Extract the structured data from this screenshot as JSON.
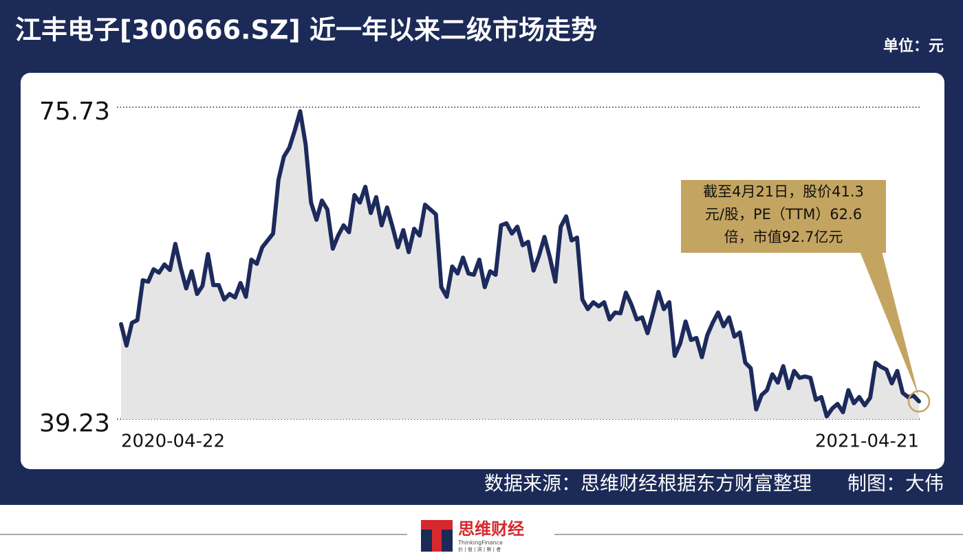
{
  "chart_data": {
    "type": "line",
    "title": "江丰电子[300666.SZ] 近一年以来二级市场走势",
    "unit": "单位：元",
    "categories": [
      "2020-04-22",
      null,
      null,
      null,
      null,
      null,
      null,
      null,
      null,
      null,
      null,
      null,
      null,
      null,
      null,
      null,
      null,
      null,
      null,
      null,
      null,
      null,
      null,
      null,
      null,
      null,
      null,
      null,
      null,
      null,
      null,
      null,
      null,
      null,
      null,
      null,
      null,
      null,
      null,
      null,
      null,
      null,
      null,
      null,
      null,
      null,
      null,
      null,
      null,
      null,
      null,
      null,
      null,
      null,
      null,
      null,
      null,
      null,
      null,
      null,
      null,
      null,
      null,
      null,
      null,
      null,
      null,
      null,
      null,
      null,
      null,
      null,
      null,
      null,
      null,
      null,
      null,
      null,
      null,
      null,
      null,
      null,
      null,
      null,
      null,
      null,
      null,
      null,
      null,
      null,
      null,
      null,
      null,
      null,
      null,
      null,
      null,
      null,
      null,
      null,
      null,
      null,
      null,
      null,
      null,
      null,
      null,
      null,
      null,
      null,
      null,
      null,
      null,
      null,
      null,
      null,
      null,
      null,
      null,
      null,
      null,
      null,
      null,
      null,
      null,
      null,
      null,
      null,
      null,
      null,
      null,
      null,
      null,
      null,
      null,
      null,
      null,
      null,
      null,
      null,
      null,
      null,
      null,
      null,
      null,
      null,
      null,
      "2021-04-21"
    ],
    "series": [
      {
        "color": "#1d2a5c",
        "fill": "#e5e5e5",
        "values": [
          50.33,
          47.83,
          50.49,
          50.81,
          55.47,
          55.31,
          56.76,
          56.36,
          57.32,
          56.68,
          59.73,
          56.92,
          54.51,
          56.52,
          53.86,
          54.83,
          58.53,
          54.91,
          54.91,
          53.22,
          53.86,
          53.46,
          55.15,
          53.54,
          57.88,
          57.4,
          59.33,
          60.13,
          60.94,
          67.21,
          69.94,
          70.99,
          73.0,
          75.25,
          71.39,
          64.56,
          62.55,
          64.8,
          63.75,
          59.17,
          60.7,
          61.9,
          61.1,
          65.44,
          64.56,
          66.41,
          63.35,
          65.2,
          61.9,
          63.99,
          61.74,
          59.33,
          61.34,
          58.77,
          61.5,
          60.7,
          64.31,
          63.75,
          63.19,
          54.67,
          53.54,
          57.08,
          56.27,
          58.12,
          56.27,
          56.11,
          57.88,
          54.67,
          56.52,
          56.11,
          61.9,
          62.14,
          60.94,
          61.74,
          59.57,
          59.97,
          56.6,
          58.36,
          60.54,
          58.12,
          55.31,
          61.74,
          62.95,
          60.13,
          60.46,
          53.22,
          52.09,
          52.9,
          52.42,
          52.9,
          50.89,
          51.69,
          51.61,
          54.02,
          52.66,
          50.89,
          51.13,
          49.28,
          51.61,
          54.1,
          52.09,
          52.9,
          46.63,
          48.07,
          50.65,
          48.48,
          48.72,
          46.47,
          49.04,
          50.49,
          51.69,
          50.08,
          51.13,
          48.88,
          49.36,
          45.82,
          45.18,
          40.36,
          42.04,
          42.61,
          44.46,
          43.49,
          45.42,
          42.85,
          44.86,
          44.05,
          44.21,
          44.05,
          41.48,
          41.8,
          39.55,
          40.44,
          41.0,
          40.03,
          42.61,
          41.08,
          41.8,
          40.84,
          41.72,
          45.82,
          45.34,
          45.02,
          43.41,
          44.86,
          42.29,
          41.8,
          41.96,
          41.3
        ]
      }
    ],
    "ylim": [
      39.23,
      75.73
    ],
    "yticks": [
      39.23,
      75.73
    ],
    "annotation": {
      "lines": [
        "截至4月21日，股价41.3",
        "元/股，PE（TTM）62.6",
        "倍，市值92.7亿元"
      ],
      "color": "#c4a461"
    },
    "source": "数据来源：思维财经根据东方财富整理",
    "author": "制图：大伟",
    "logo": {
      "name": "思维财经",
      "english": "ThinkingFinance",
      "slogan": "价 | 值 | 洞 | 察 | 者"
    }
  }
}
